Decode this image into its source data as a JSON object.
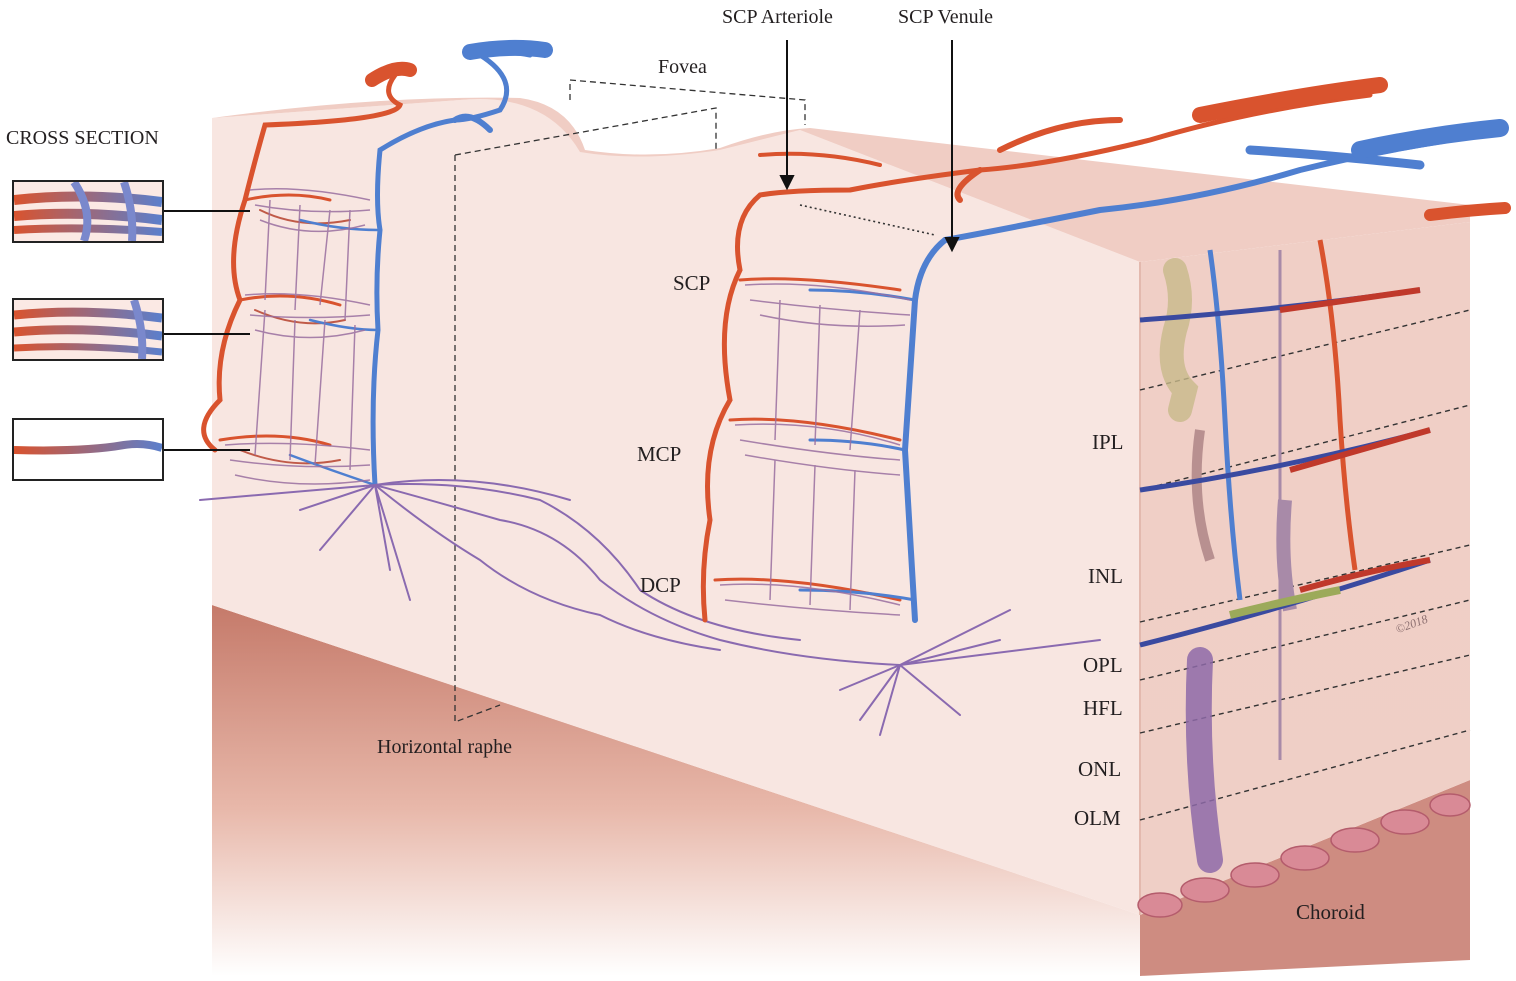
{
  "title_left": "CROSS SECTION",
  "labels": {
    "fovea": "Fovea",
    "scp_arteriole": "SCP Arteriole",
    "scp_venule": "SCP Venule",
    "scp": "SCP",
    "mcp": "MCP",
    "dcp": "DCP",
    "horizontal_raphe": "Horizontal raphe",
    "ipl": "IPL",
    "inl": "INL",
    "opl": "OPL",
    "hfl": "HFL",
    "onl": "ONL",
    "olm": "OLM",
    "choroid": "Choroid",
    "copyright": "©2018"
  },
  "colors": {
    "arteriole": "#d9532e",
    "venule": "#4f7fd0",
    "capillary_mixed": "#8a6aa0",
    "tissue": "#f6e3de",
    "tissue_top": "#f1d2ca",
    "choroid_band": "#c9776a",
    "label_text": "#231f20"
  }
}
